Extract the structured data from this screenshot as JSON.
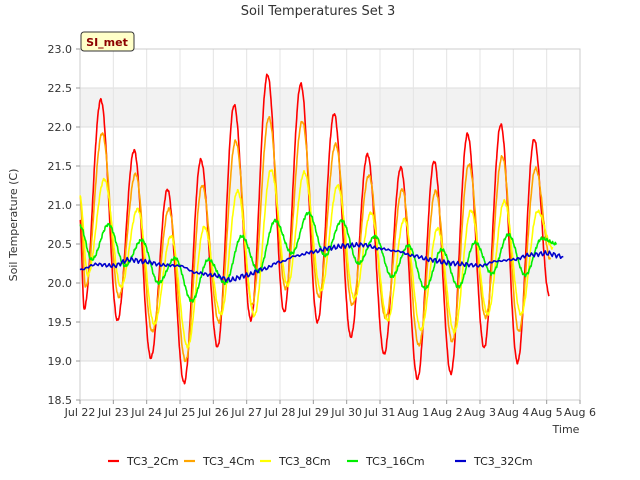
{
  "chart_data": {
    "type": "line",
    "title": "Soil Temperatures Set 3",
    "xlabel": "Time",
    "ylabel": "Soil Temperature (C)",
    "badge": "SI_met",
    "x_ticks": [
      "Jul 22",
      "Jul 23",
      "Jul 24",
      "Jul 25",
      "Jul 26",
      "Jul 27",
      "Jul 28",
      "Jul 29",
      "Jul 30",
      "Jul 31",
      "Aug 1",
      "Aug 2",
      "Aug 3",
      "Aug 4",
      "Aug 5",
      "Aug 6"
    ],
    "xlim": [
      "2023-07-22",
      "2023-08-06"
    ],
    "ylim": [
      18.5,
      23.0
    ],
    "y_ticks": [
      "18.5",
      "19.0",
      "19.5",
      "20.0",
      "20.5",
      "21.0",
      "21.5",
      "22.0",
      "22.5",
      "23.0"
    ],
    "grid": true,
    "legend_position": "bottom",
    "series": [
      {
        "name": "TC3_2Cm",
        "color": "#ff0000",
        "daily_max": [
          22.35,
          21.7,
          21.2,
          21.58,
          22.28,
          22.67,
          22.55,
          22.17,
          21.65,
          21.48,
          21.56,
          21.91,
          22.03,
          21.84
        ],
        "daily_min": [
          19.67,
          19.52,
          19.04,
          18.72,
          19.18,
          19.53,
          19.63,
          19.5,
          19.31,
          19.09,
          18.77,
          18.84,
          19.17,
          18.98
        ],
        "start": 20.8,
        "end": 19.85
      },
      {
        "name": "TC3_4Cm",
        "color": "#ffa500",
        "daily_max": [
          21.92,
          21.4,
          20.95,
          21.25,
          21.82,
          22.12,
          22.07,
          21.78,
          21.38,
          21.2,
          21.18,
          21.52,
          21.62,
          21.47
        ],
        "daily_min": [
          19.95,
          19.82,
          19.38,
          19.0,
          19.5,
          19.72,
          19.93,
          19.82,
          19.72,
          19.55,
          19.2,
          19.25,
          19.56,
          19.38
        ],
        "start": 21.1,
        "end": 20.3
      },
      {
        "name": "TC3_8Cm",
        "color": "#ffff00",
        "daily_max": [
          21.33,
          20.95,
          20.6,
          20.72,
          21.18,
          21.45,
          21.42,
          21.25,
          20.9,
          20.82,
          20.7,
          20.93,
          21.05,
          20.92
        ],
        "daily_min": [
          20.1,
          19.95,
          19.47,
          19.18,
          19.6,
          19.58,
          19.97,
          19.9,
          19.8,
          19.52,
          19.4,
          19.37,
          19.6,
          19.6
        ],
        "start": 21.1,
        "end": 20.45
      },
      {
        "name": "TC3_16Cm",
        "color": "#00ee00",
        "daily_max": [
          20.75,
          20.55,
          20.32,
          20.3,
          20.6,
          20.8,
          20.9,
          20.8,
          20.6,
          20.48,
          20.43,
          20.52,
          20.62,
          20.57
        ],
        "daily_min": [
          20.3,
          20.22,
          20.0,
          19.77,
          20.0,
          20.15,
          20.38,
          20.35,
          20.25,
          20.08,
          19.93,
          19.95,
          20.12,
          20.1
        ],
        "start": 20.73,
        "end": 20.5
      },
      {
        "name": "TC3_32Cm",
        "color": "#0000cc",
        "x": [
          "2023-07-22T00:00",
          "2023-07-22T12:00",
          "2023-07-23T00:00",
          "2023-07-23T12:00",
          "2023-07-24T00:00",
          "2023-07-24T12:00",
          "2023-07-25T00:00",
          "2023-07-25T12:00",
          "2023-07-26T00:00",
          "2023-07-26T12:00",
          "2023-07-27T00:00",
          "2023-07-27T12:00",
          "2023-07-28T00:00",
          "2023-07-28T12:00",
          "2023-07-29T00:00",
          "2023-07-29T12:00",
          "2023-07-30T00:00",
          "2023-07-30T12:00",
          "2023-07-31T00:00",
          "2023-07-31T12:00",
          "2023-08-01T00:00",
          "2023-08-01T12:00",
          "2023-08-02T00:00",
          "2023-08-02T12:00",
          "2023-08-03T00:00",
          "2023-08-03T12:00",
          "2023-08-04T00:00",
          "2023-08-04T12:00",
          "2023-08-05T00:00",
          "2023-08-05T12:00"
        ],
        "y": [
          20.17,
          20.24,
          20.22,
          20.3,
          20.27,
          20.23,
          20.22,
          20.13,
          20.1,
          20.04,
          20.1,
          20.18,
          20.27,
          20.35,
          20.4,
          20.45,
          20.48,
          20.49,
          20.44,
          20.41,
          20.35,
          20.3,
          20.26,
          20.24,
          20.22,
          20.28,
          20.3,
          20.36,
          20.38,
          20.34
        ]
      }
    ]
  }
}
